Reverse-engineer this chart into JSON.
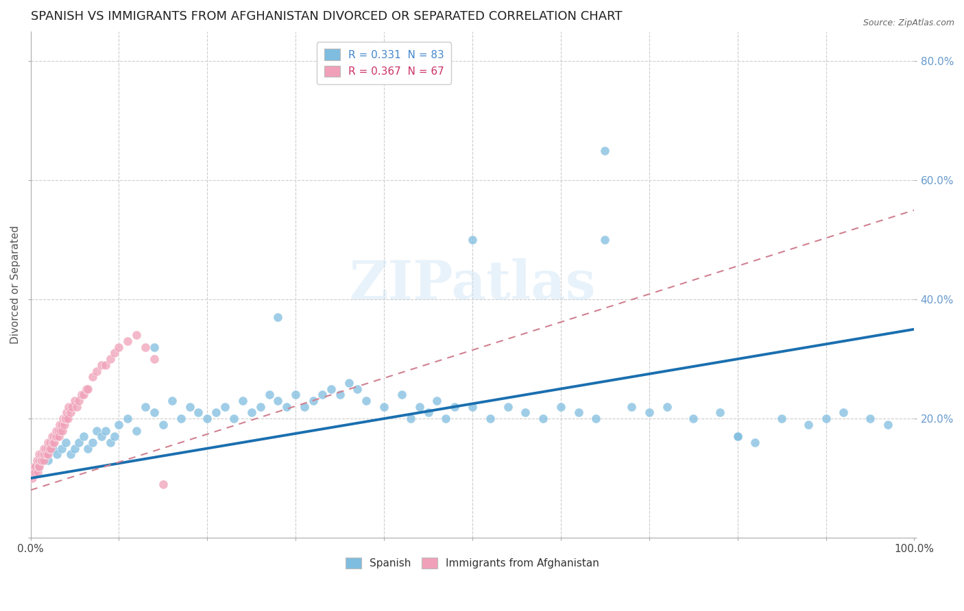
{
  "title": "SPANISH VS IMMIGRANTS FROM AFGHANISTAN DIVORCED OR SEPARATED CORRELATION CHART",
  "source": "Source: ZipAtlas.com",
  "ylabel": "Divorced or Separated",
  "xlim": [
    0.0,
    1.0
  ],
  "ylim": [
    0.0,
    0.85
  ],
  "xticks": [
    0.0,
    0.1,
    0.2,
    0.3,
    0.4,
    0.5,
    0.6,
    0.7,
    0.8,
    0.9,
    1.0
  ],
  "yticks": [
    0.0,
    0.2,
    0.4,
    0.6,
    0.8
  ],
  "legend_entries": [
    {
      "label": "R = 0.331  N = 83",
      "color": "#a8c8f0"
    },
    {
      "label": "R = 0.367  N = 67",
      "color": "#f4a0b0"
    }
  ],
  "legend_labels_bottom": [
    "Spanish",
    "Immigrants from Afghanistan"
  ],
  "blue_color": "#7fbde0",
  "pink_color": "#f0a0b8",
  "line_blue_color": "#1a6faf",
  "line_pink_color": "#d08090",
  "watermark": "ZIPatlas",
  "title_fontsize": 13,
  "axis_label_fontsize": 11,
  "tick_fontsize": 11,
  "background_color": "#ffffff",
  "grid_color": "#cccccc",
  "blue_scatter_x": [
    0.005,
    0.01,
    0.015,
    0.02,
    0.025,
    0.03,
    0.035,
    0.04,
    0.045,
    0.05,
    0.055,
    0.06,
    0.065,
    0.07,
    0.075,
    0.08,
    0.085,
    0.09,
    0.095,
    0.1,
    0.11,
    0.12,
    0.13,
    0.14,
    0.15,
    0.16,
    0.17,
    0.18,
    0.19,
    0.2,
    0.21,
    0.22,
    0.23,
    0.24,
    0.25,
    0.26,
    0.27,
    0.28,
    0.29,
    0.3,
    0.31,
    0.32,
    0.33,
    0.34,
    0.35,
    0.36,
    0.37,
    0.38,
    0.4,
    0.42,
    0.43,
    0.44,
    0.45,
    0.46,
    0.47,
    0.48,
    0.5,
    0.52,
    0.54,
    0.56,
    0.58,
    0.6,
    0.62,
    0.64,
    0.65,
    0.68,
    0.7,
    0.72,
    0.75,
    0.78,
    0.8,
    0.82,
    0.85,
    0.88,
    0.9,
    0.92,
    0.95,
    0.97,
    0.14,
    0.28,
    0.5,
    0.65,
    0.8
  ],
  "blue_scatter_y": [
    0.12,
    0.13,
    0.14,
    0.13,
    0.15,
    0.14,
    0.15,
    0.16,
    0.14,
    0.15,
    0.16,
    0.17,
    0.15,
    0.16,
    0.18,
    0.17,
    0.18,
    0.16,
    0.17,
    0.19,
    0.2,
    0.18,
    0.22,
    0.21,
    0.19,
    0.23,
    0.2,
    0.22,
    0.21,
    0.2,
    0.21,
    0.22,
    0.2,
    0.23,
    0.21,
    0.22,
    0.24,
    0.23,
    0.22,
    0.24,
    0.22,
    0.23,
    0.24,
    0.25,
    0.24,
    0.26,
    0.25,
    0.23,
    0.22,
    0.24,
    0.2,
    0.22,
    0.21,
    0.23,
    0.2,
    0.22,
    0.22,
    0.2,
    0.22,
    0.21,
    0.2,
    0.22,
    0.21,
    0.2,
    0.65,
    0.22,
    0.21,
    0.22,
    0.2,
    0.21,
    0.17,
    0.16,
    0.2,
    0.19,
    0.2,
    0.21,
    0.2,
    0.19,
    0.32,
    0.37,
    0.5,
    0.5,
    0.17
  ],
  "pink_scatter_x": [
    0.002,
    0.003,
    0.004,
    0.005,
    0.006,
    0.007,
    0.008,
    0.009,
    0.01,
    0.01,
    0.01,
    0.012,
    0.012,
    0.013,
    0.014,
    0.015,
    0.015,
    0.016,
    0.017,
    0.018,
    0.019,
    0.02,
    0.02,
    0.021,
    0.022,
    0.023,
    0.024,
    0.025,
    0.026,
    0.027,
    0.028,
    0.029,
    0.03,
    0.031,
    0.032,
    0.033,
    0.034,
    0.035,
    0.036,
    0.037,
    0.038,
    0.039,
    0.04,
    0.041,
    0.042,
    0.043,
    0.045,
    0.047,
    0.05,
    0.052,
    0.055,
    0.058,
    0.06,
    0.063,
    0.065,
    0.07,
    0.075,
    0.08,
    0.085,
    0.09,
    0.095,
    0.1,
    0.11,
    0.12,
    0.13,
    0.14,
    0.15
  ],
  "pink_scatter_y": [
    0.1,
    0.11,
    0.12,
    0.11,
    0.12,
    0.13,
    0.11,
    0.12,
    0.13,
    0.14,
    0.12,
    0.13,
    0.14,
    0.13,
    0.14,
    0.15,
    0.13,
    0.14,
    0.15,
    0.14,
    0.15,
    0.14,
    0.16,
    0.15,
    0.16,
    0.15,
    0.17,
    0.16,
    0.17,
    0.16,
    0.17,
    0.18,
    0.17,
    0.18,
    0.17,
    0.19,
    0.18,
    0.19,
    0.18,
    0.2,
    0.19,
    0.2,
    0.2,
    0.21,
    0.2,
    0.22,
    0.21,
    0.22,
    0.23,
    0.22,
    0.23,
    0.24,
    0.24,
    0.25,
    0.25,
    0.27,
    0.28,
    0.29,
    0.29,
    0.3,
    0.31,
    0.32,
    0.33,
    0.34,
    0.32,
    0.3,
    0.09
  ],
  "blue_line_x0": 0.0,
  "blue_line_x1": 1.0,
  "blue_line_y0": 0.1,
  "blue_line_y1": 0.35,
  "pink_line_x0": 0.0,
  "pink_line_x1": 1.0,
  "pink_line_y0": 0.08,
  "pink_line_y1": 0.55
}
